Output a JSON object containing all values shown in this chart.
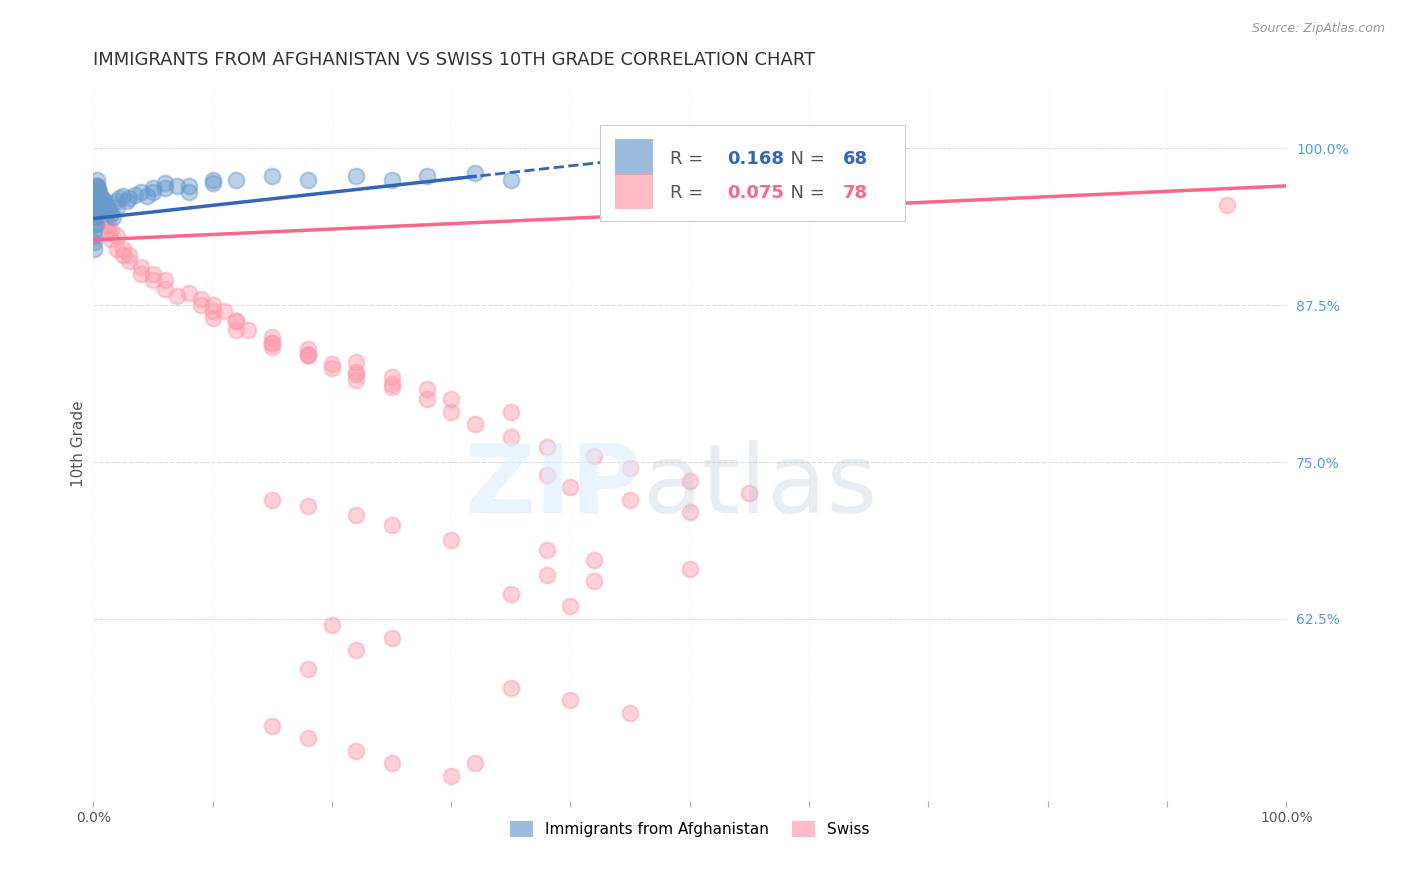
{
  "title": "IMMIGRANTS FROM AFGHANISTAN VS SWISS 10TH GRADE CORRELATION CHART",
  "source": "Source: ZipAtlas.com",
  "ylabel": "10th Grade",
  "xlim": [
    0.0,
    1.0
  ],
  "ylim": [
    0.48,
    1.05
  ],
  "yticks": [
    0.625,
    0.75,
    0.875,
    1.0
  ],
  "ytick_labels": [
    "62.5%",
    "75.0%",
    "87.5%",
    "100.0%"
  ],
  "xtick_positions": [
    0.0,
    0.1,
    0.2,
    0.3,
    0.4,
    0.5,
    0.6,
    0.7,
    0.8,
    0.9,
    1.0
  ],
  "legend_blue_r": "0.168",
  "legend_blue_n": "68",
  "legend_pink_r": "0.075",
  "legend_pink_n": "78",
  "blue_color": "#6699CC",
  "pink_color": "#FF99AA",
  "blue_line_color": "#3366BB",
  "pink_line_color": "#FF6688",
  "background_color": "#FFFFFF",
  "grid_color": "#DDDDDD",
  "title_fontsize": 13,
  "axis_label_fontsize": 11,
  "tick_fontsize": 10,
  "blue_scatter_x": [
    0.001,
    0.001,
    0.001,
    0.001,
    0.001,
    0.001,
    0.001,
    0.001,
    0.001,
    0.002,
    0.002,
    0.002,
    0.002,
    0.002,
    0.002,
    0.002,
    0.003,
    0.003,
    0.003,
    0.003,
    0.003,
    0.003,
    0.004,
    0.004,
    0.004,
    0.005,
    0.005,
    0.005,
    0.006,
    0.006,
    0.007,
    0.007,
    0.008,
    0.008,
    0.009,
    0.01,
    0.01,
    0.011,
    0.012,
    0.013,
    0.015,
    0.017,
    0.02,
    0.02,
    0.022,
    0.025,
    0.028,
    0.03,
    0.035,
    0.04,
    0.045,
    0.05,
    0.06,
    0.07,
    0.08,
    0.1,
    0.12,
    0.15,
    0.18,
    0.22,
    0.25,
    0.28,
    0.32,
    0.35,
    0.05,
    0.06,
    0.08,
    0.1
  ],
  "blue_scatter_y": [
    0.96,
    0.955,
    0.95,
    0.945,
    0.94,
    0.935,
    0.93,
    0.925,
    0.92,
    0.97,
    0.965,
    0.96,
    0.955,
    0.95,
    0.945,
    0.94,
    0.975,
    0.97,
    0.965,
    0.96,
    0.955,
    0.95,
    0.968,
    0.963,
    0.958,
    0.965,
    0.96,
    0.955,
    0.962,
    0.957,
    0.96,
    0.955,
    0.958,
    0.953,
    0.955,
    0.958,
    0.953,
    0.955,
    0.952,
    0.95,
    0.948,
    0.945,
    0.958,
    0.953,
    0.96,
    0.962,
    0.958,
    0.96,
    0.963,
    0.965,
    0.962,
    0.965,
    0.968,
    0.97,
    0.965,
    0.972,
    0.975,
    0.978,
    0.975,
    0.978,
    0.975,
    0.978,
    0.98,
    0.975,
    0.968,
    0.972,
    0.97,
    0.975
  ],
  "pink_scatter_x": [
    0.001,
    0.001,
    0.002,
    0.002,
    0.002,
    0.003,
    0.003,
    0.004,
    0.004,
    0.005,
    0.006,
    0.007,
    0.008,
    0.009,
    0.01,
    0.012,
    0.015,
    0.02,
    0.025,
    0.03,
    0.04,
    0.05,
    0.06,
    0.08,
    0.09,
    0.1,
    0.11,
    0.12,
    0.13,
    0.15,
    0.18,
    0.2,
    0.22,
    0.25,
    0.28,
    0.3,
    0.32,
    0.35,
    0.38,
    0.42,
    0.45,
    0.5,
    0.55,
    0.38,
    0.4,
    0.45,
    0.5,
    0.95,
    0.003,
    0.004,
    0.005,
    0.006,
    0.007,
    0.008,
    0.01,
    0.012,
    0.015,
    0.02,
    0.025,
    0.03,
    0.04,
    0.05,
    0.06,
    0.07,
    0.09,
    0.12,
    0.15,
    0.18,
    0.22,
    0.25,
    0.28,
    0.1,
    0.15,
    0.18,
    0.22,
    0.25,
    0.3,
    0.35
  ],
  "pink_scatter_y": [
    0.96,
    0.955,
    0.965,
    0.96,
    0.955,
    0.962,
    0.957,
    0.96,
    0.955,
    0.958,
    0.955,
    0.952,
    0.95,
    0.948,
    0.945,
    0.94,
    0.935,
    0.93,
    0.92,
    0.915,
    0.905,
    0.9,
    0.895,
    0.885,
    0.88,
    0.875,
    0.87,
    0.862,
    0.855,
    0.845,
    0.835,
    0.825,
    0.815,
    0.81,
    0.8,
    0.79,
    0.78,
    0.77,
    0.762,
    0.755,
    0.745,
    0.735,
    0.725,
    0.74,
    0.73,
    0.72,
    0.71,
    0.955,
    0.97,
    0.965,
    0.96,
    0.955,
    0.95,
    0.945,
    0.94,
    0.935,
    0.928,
    0.92,
    0.915,
    0.91,
    0.9,
    0.895,
    0.888,
    0.882,
    0.875,
    0.862,
    0.85,
    0.84,
    0.83,
    0.818,
    0.808,
    0.87,
    0.845,
    0.835,
    0.822,
    0.812,
    0.8,
    0.79
  ],
  "pink_extra_x": [
    0.15,
    0.18,
    0.22,
    0.25,
    0.3,
    0.38,
    0.42,
    0.5,
    0.38,
    0.42,
    0.35,
    0.4,
    0.2,
    0.25,
    0.22,
    0.18,
    0.35,
    0.4,
    0.45,
    0.15,
    0.18,
    0.22,
    0.25,
    0.3,
    0.32,
    0.1,
    0.12,
    0.15,
    0.18,
    0.2,
    0.22
  ],
  "pink_extra_y": [
    0.72,
    0.715,
    0.708,
    0.7,
    0.688,
    0.68,
    0.672,
    0.665,
    0.66,
    0.655,
    0.645,
    0.635,
    0.62,
    0.61,
    0.6,
    0.585,
    0.57,
    0.56,
    0.55,
    0.54,
    0.53,
    0.52,
    0.51,
    0.5,
    0.51,
    0.865,
    0.855,
    0.842,
    0.835,
    0.828,
    0.82
  ]
}
